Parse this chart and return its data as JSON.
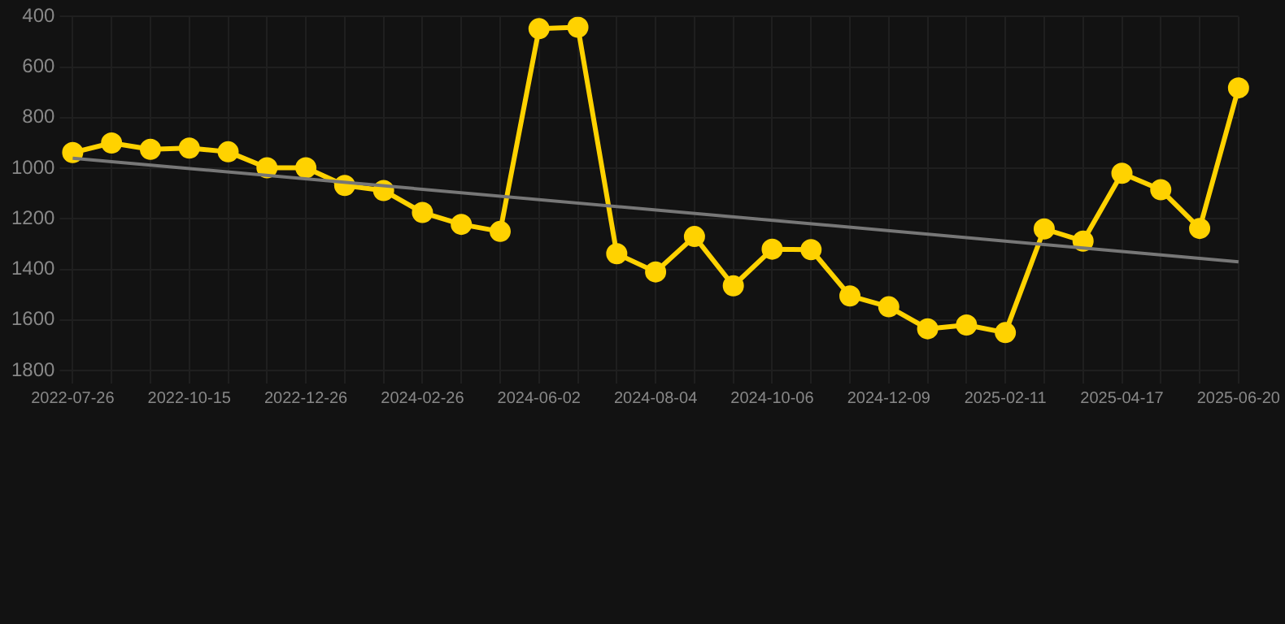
{
  "chart_data": {
    "type": "line",
    "categories": [
      "2022-07-26",
      null,
      null,
      "2022-10-15",
      null,
      null,
      "2022-12-26",
      null,
      null,
      "2024-02-26",
      null,
      null,
      "2024-06-02",
      null,
      null,
      "2024-08-04",
      null,
      null,
      "2024-10-06",
      null,
      null,
      "2024-12-09",
      null,
      null,
      "2025-02-11",
      null,
      null,
      "2025-04-17",
      null,
      null,
      "2025-06-20"
    ],
    "series": [
      {
        "color": "#ffd200",
        "marker": "circle",
        "values": [
          938,
          900,
          925,
          920,
          935,
          998,
          998,
          1068,
          1088,
          1175,
          1222,
          1250,
          448,
          442,
          1338,
          1410,
          1270,
          1465,
          1320,
          1322,
          1505,
          1548,
          1635,
          1620,
          1650,
          1240,
          1288,
          1020,
          1085,
          1238,
          682
        ]
      },
      {
        "color": "#777777",
        "marker": "none",
        "values": [
          960,
          null,
          null,
          null,
          null,
          null,
          null,
          null,
          null,
          null,
          null,
          null,
          null,
          null,
          null,
          null,
          null,
          null,
          null,
          null,
          null,
          null,
          null,
          null,
          null,
          null,
          null,
          null,
          null,
          null,
          1370
        ]
      }
    ],
    "ylim": [
      1800,
      400
    ],
    "yticks": [
      400,
      600,
      800,
      1000,
      1200,
      1400,
      1600,
      1800
    ],
    "grid": true,
    "legend": false
  }
}
